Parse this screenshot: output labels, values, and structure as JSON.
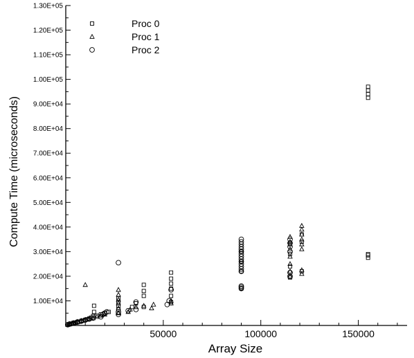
{
  "chart_data": {
    "type": "scatter",
    "xlabel": "Array Size",
    "ylabel": "Compute Time (microseconds)",
    "xlim": [
      0,
      175000
    ],
    "ylim": [
      0,
      130000
    ],
    "x_ticks": [
      50000,
      100000,
      150000
    ],
    "y_ticks": [
      10000,
      20000,
      30000,
      40000,
      50000,
      60000,
      70000,
      80000,
      90000,
      100000,
      110000,
      120000,
      130000
    ],
    "x_tick_labels": [
      "50000",
      "100000",
      "150000"
    ],
    "y_tick_labels": [
      "1.00E+04",
      "2.00E+04",
      "3.00E+04",
      "4.00E+04",
      "5.00E+04",
      "6.00E+04",
      "7.00E+04",
      "8.00E+04",
      "9.00E+04",
      "1.00E+05",
      "1.10E+05",
      "1.20E+05",
      "1.30E+05"
    ],
    "grid": false,
    "legend_position": "top-left",
    "series": [
      {
        "name": "Proc 0",
        "marker": "square",
        "points": [
          [
            1000,
            300
          ],
          [
            2000,
            500
          ],
          [
            3000,
            700
          ],
          [
            4000,
            900
          ],
          [
            5000,
            1100
          ],
          [
            6000,
            1300
          ],
          [
            7000,
            1500
          ],
          [
            8000,
            1800
          ],
          [
            9000,
            2000
          ],
          [
            10000,
            2300
          ],
          [
            11000,
            2500
          ],
          [
            12000,
            2800
          ],
          [
            13000,
            3200
          ],
          [
            14000,
            3800
          ],
          [
            14500,
            5500
          ],
          [
            14500,
            8000
          ],
          [
            16000,
            4000
          ],
          [
            18000,
            4500
          ],
          [
            20000,
            5000
          ],
          [
            22000,
            5500
          ],
          [
            27000,
            6500
          ],
          [
            27000,
            8000
          ],
          [
            27000,
            9500
          ],
          [
            27000,
            11000
          ],
          [
            34000,
            7500
          ],
          [
            36000,
            9000
          ],
          [
            40000,
            7500
          ],
          [
            40000,
            12000
          ],
          [
            40000,
            14000
          ],
          [
            40000,
            16500
          ],
          [
            54000,
            9500
          ],
          [
            54000,
            12000
          ],
          [
            54000,
            15000
          ],
          [
            54000,
            17000
          ],
          [
            54000,
            19000
          ],
          [
            54000,
            21500
          ],
          [
            90000,
            15000
          ],
          [
            90000,
            22000
          ],
          [
            90000,
            26000
          ],
          [
            90000,
            30000
          ],
          [
            115000,
            19500
          ],
          [
            115000,
            24000
          ],
          [
            115000,
            29000
          ],
          [
            115000,
            33000
          ],
          [
            121000,
            22000
          ],
          [
            121000,
            34000
          ],
          [
            121000,
            37000
          ],
          [
            155000,
            27500
          ],
          [
            155000,
            28500
          ],
          [
            155000,
            29000
          ],
          [
            155000,
            92500
          ],
          [
            155000,
            94000
          ],
          [
            155000,
            95500
          ],
          [
            155000,
            97000
          ]
        ]
      },
      {
        "name": "Proc 1",
        "marker": "triangle",
        "points": [
          [
            1000,
            300
          ],
          [
            2000,
            500
          ],
          [
            3000,
            800
          ],
          [
            4000,
            1000
          ],
          [
            5000,
            1200
          ],
          [
            6000,
            1500
          ],
          [
            8000,
            1900
          ],
          [
            10000,
            2300
          ],
          [
            10000,
            16500
          ],
          [
            12000,
            2700
          ],
          [
            14000,
            3000
          ],
          [
            16000,
            3500
          ],
          [
            18000,
            4000
          ],
          [
            20000,
            4500
          ],
          [
            27000,
            5000
          ],
          [
            27000,
            7000
          ],
          [
            27000,
            9000
          ],
          [
            27000,
            10500
          ],
          [
            27000,
            12500
          ],
          [
            27000,
            14500
          ],
          [
            32000,
            5500
          ],
          [
            33000,
            6500
          ],
          [
            36000,
            7500
          ],
          [
            40000,
            8000
          ],
          [
            44000,
            7000
          ],
          [
            45000,
            8500
          ],
          [
            54000,
            9000
          ],
          [
            54000,
            10000
          ],
          [
            115000,
            20000
          ],
          [
            115000,
            22000
          ],
          [
            115000,
            25000
          ],
          [
            115000,
            28000
          ],
          [
            115000,
            31000
          ],
          [
            115000,
            34000
          ],
          [
            115000,
            36000
          ],
          [
            121000,
            21000
          ],
          [
            121000,
            22500
          ],
          [
            121000,
            31000
          ],
          [
            121000,
            33000
          ],
          [
            121000,
            35000
          ],
          [
            121000,
            37000
          ],
          [
            121000,
            39000
          ],
          [
            121000,
            40500
          ]
        ]
      },
      {
        "name": "Proc 2",
        "marker": "circle",
        "points": [
          [
            1000,
            300
          ],
          [
            2000,
            600
          ],
          [
            4000,
            1000
          ],
          [
            6000,
            1400
          ],
          [
            8000,
            1800
          ],
          [
            10000,
            2200
          ],
          [
            12000,
            2600
          ],
          [
            14000,
            3000
          ],
          [
            18000,
            3500
          ],
          [
            19000,
            4500
          ],
          [
            20000,
            5000
          ],
          [
            21000,
            5500
          ],
          [
            27000,
            4500
          ],
          [
            27000,
            5500
          ],
          [
            27000,
            25500
          ],
          [
            32000,
            6000
          ],
          [
            36000,
            6500
          ],
          [
            36000,
            9500
          ],
          [
            52000,
            8500
          ],
          [
            53000,
            10000
          ],
          [
            54000,
            14500
          ],
          [
            90000,
            15000
          ],
          [
            90000,
            15500
          ],
          [
            90000,
            16000
          ],
          [
            90000,
            22000
          ],
          [
            90000,
            23000
          ],
          [
            90000,
            24000
          ],
          [
            90000,
            25000
          ],
          [
            90000,
            26000
          ],
          [
            90000,
            27000
          ],
          [
            90000,
            28000
          ],
          [
            90000,
            29000
          ],
          [
            90000,
            30000
          ],
          [
            90000,
            31000
          ],
          [
            90000,
            32000
          ],
          [
            90000,
            33000
          ],
          [
            90000,
            34000
          ],
          [
            90000,
            35000
          ],
          [
            115000,
            20000
          ],
          [
            115000,
            21500
          ],
          [
            115000,
            30000
          ],
          [
            115000,
            32000
          ],
          [
            115000,
            33500
          ],
          [
            115000,
            35000
          ]
        ]
      }
    ]
  }
}
